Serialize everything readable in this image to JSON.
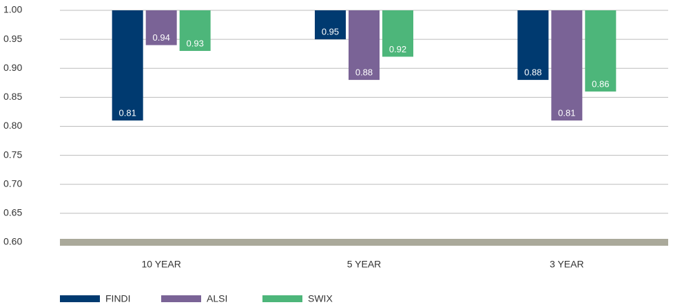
{
  "chart_data": {
    "type": "bar",
    "categories": [
      "10 YEAR",
      "5 YEAR",
      "3 YEAR"
    ],
    "series": [
      {
        "name": "FINDI",
        "color": "#003a70",
        "values": [
          0.81,
          0.95,
          0.88
        ]
      },
      {
        "name": "ALSI",
        "color": "#7a6396",
        "values": [
          0.94,
          0.88,
          0.81
        ]
      },
      {
        "name": "SWIX",
        "color": "#4db67a",
        "values": [
          0.93,
          0.92,
          0.86
        ]
      }
    ],
    "ylim": [
      0.6,
      1.0
    ],
    "yticks": [
      {
        "value": 0.6,
        "label": "0.60"
      },
      {
        "value": 0.65,
        "label": "0.65"
      },
      {
        "value": 0.7,
        "label": "0.70"
      },
      {
        "value": 0.75,
        "label": "0.75"
      },
      {
        "value": 0.8,
        "label": "0.80"
      },
      {
        "value": 0.85,
        "label": "0.85"
      },
      {
        "value": 0.9,
        "label": "0.90"
      },
      {
        "value": 0.95,
        "label": "0.95"
      },
      {
        "value": 1.0,
        "label": "1.00"
      }
    ],
    "grid": true,
    "legend": "bottom-left"
  }
}
